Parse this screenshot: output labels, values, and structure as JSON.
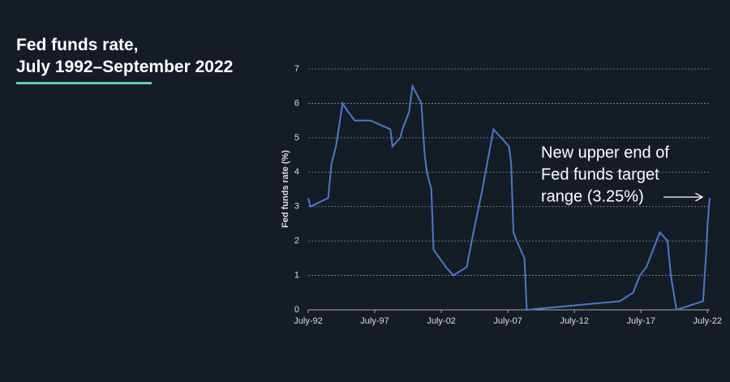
{
  "chart_data": {
    "type": "line",
    "title": [
      "Fed funds rate,",
      "July 1992–September 2022"
    ],
    "y_label": "Fed funds rate (%)",
    "annotation": [
      "New upper end of",
      "Fed funds target",
      "range (3.25%)"
    ],
    "color": "#4a78cf",
    "x": [
      "1992-07",
      "1992-09",
      "1994-01",
      "1994-04",
      "1994-08",
      "1995-02",
      "1995-07",
      "1996-01",
      "1997-03",
      "1998-09",
      "1998-11",
      "1999-06",
      "1999-08",
      "2000-02",
      "2000-05",
      "2001-01",
      "2001-04",
      "2001-06",
      "2001-10",
      "2001-12",
      "2002-11",
      "2003-06",
      "2004-06",
      "2004-12",
      "2005-08",
      "2006-06",
      "2007-08",
      "2007-10",
      "2007-12",
      "2008-03",
      "2008-10",
      "2008-12",
      "2015-12",
      "2016-12",
      "2017-06",
      "2017-12",
      "2018-12",
      "2019-07",
      "2019-10",
      "2020-03",
      "2022-03",
      "2022-06",
      "2022-07",
      "2022-09"
    ],
    "values": [
      3.25,
      3.0,
      3.25,
      4.25,
      4.75,
      6.0,
      5.75,
      5.5,
      5.5,
      5.25,
      4.75,
      5.0,
      5.25,
      5.75,
      6.5,
      6.0,
      4.5,
      4.0,
      3.5,
      1.75,
      1.25,
      1.0,
      1.25,
      2.25,
      3.5,
      5.25,
      4.75,
      4.25,
      2.25,
      2.0,
      1.5,
      0.0,
      0.25,
      0.5,
      1.0,
      1.25,
      2.25,
      2.0,
      1.0,
      0.0,
      0.25,
      1.75,
      2.5,
      3.25
    ],
    "xlim": [
      "1992-07",
      "2022-09"
    ],
    "xticks": [
      {
        "value": "1992-07",
        "label": "July-92"
      },
      {
        "value": "1997-07",
        "label": "July-97"
      },
      {
        "value": "2002-07",
        "label": "July-02"
      },
      {
        "value": "2007-07",
        "label": "July-07"
      },
      {
        "value": "2012-07",
        "label": "July-12"
      },
      {
        "value": "2017-07",
        "label": "July-17"
      },
      {
        "value": "2022-07",
        "label": "July-22"
      }
    ],
    "ylim": [
      0,
      7
    ],
    "yticks": [
      0,
      1,
      2,
      3,
      4,
      5,
      6,
      7
    ],
    "grid": true
  }
}
